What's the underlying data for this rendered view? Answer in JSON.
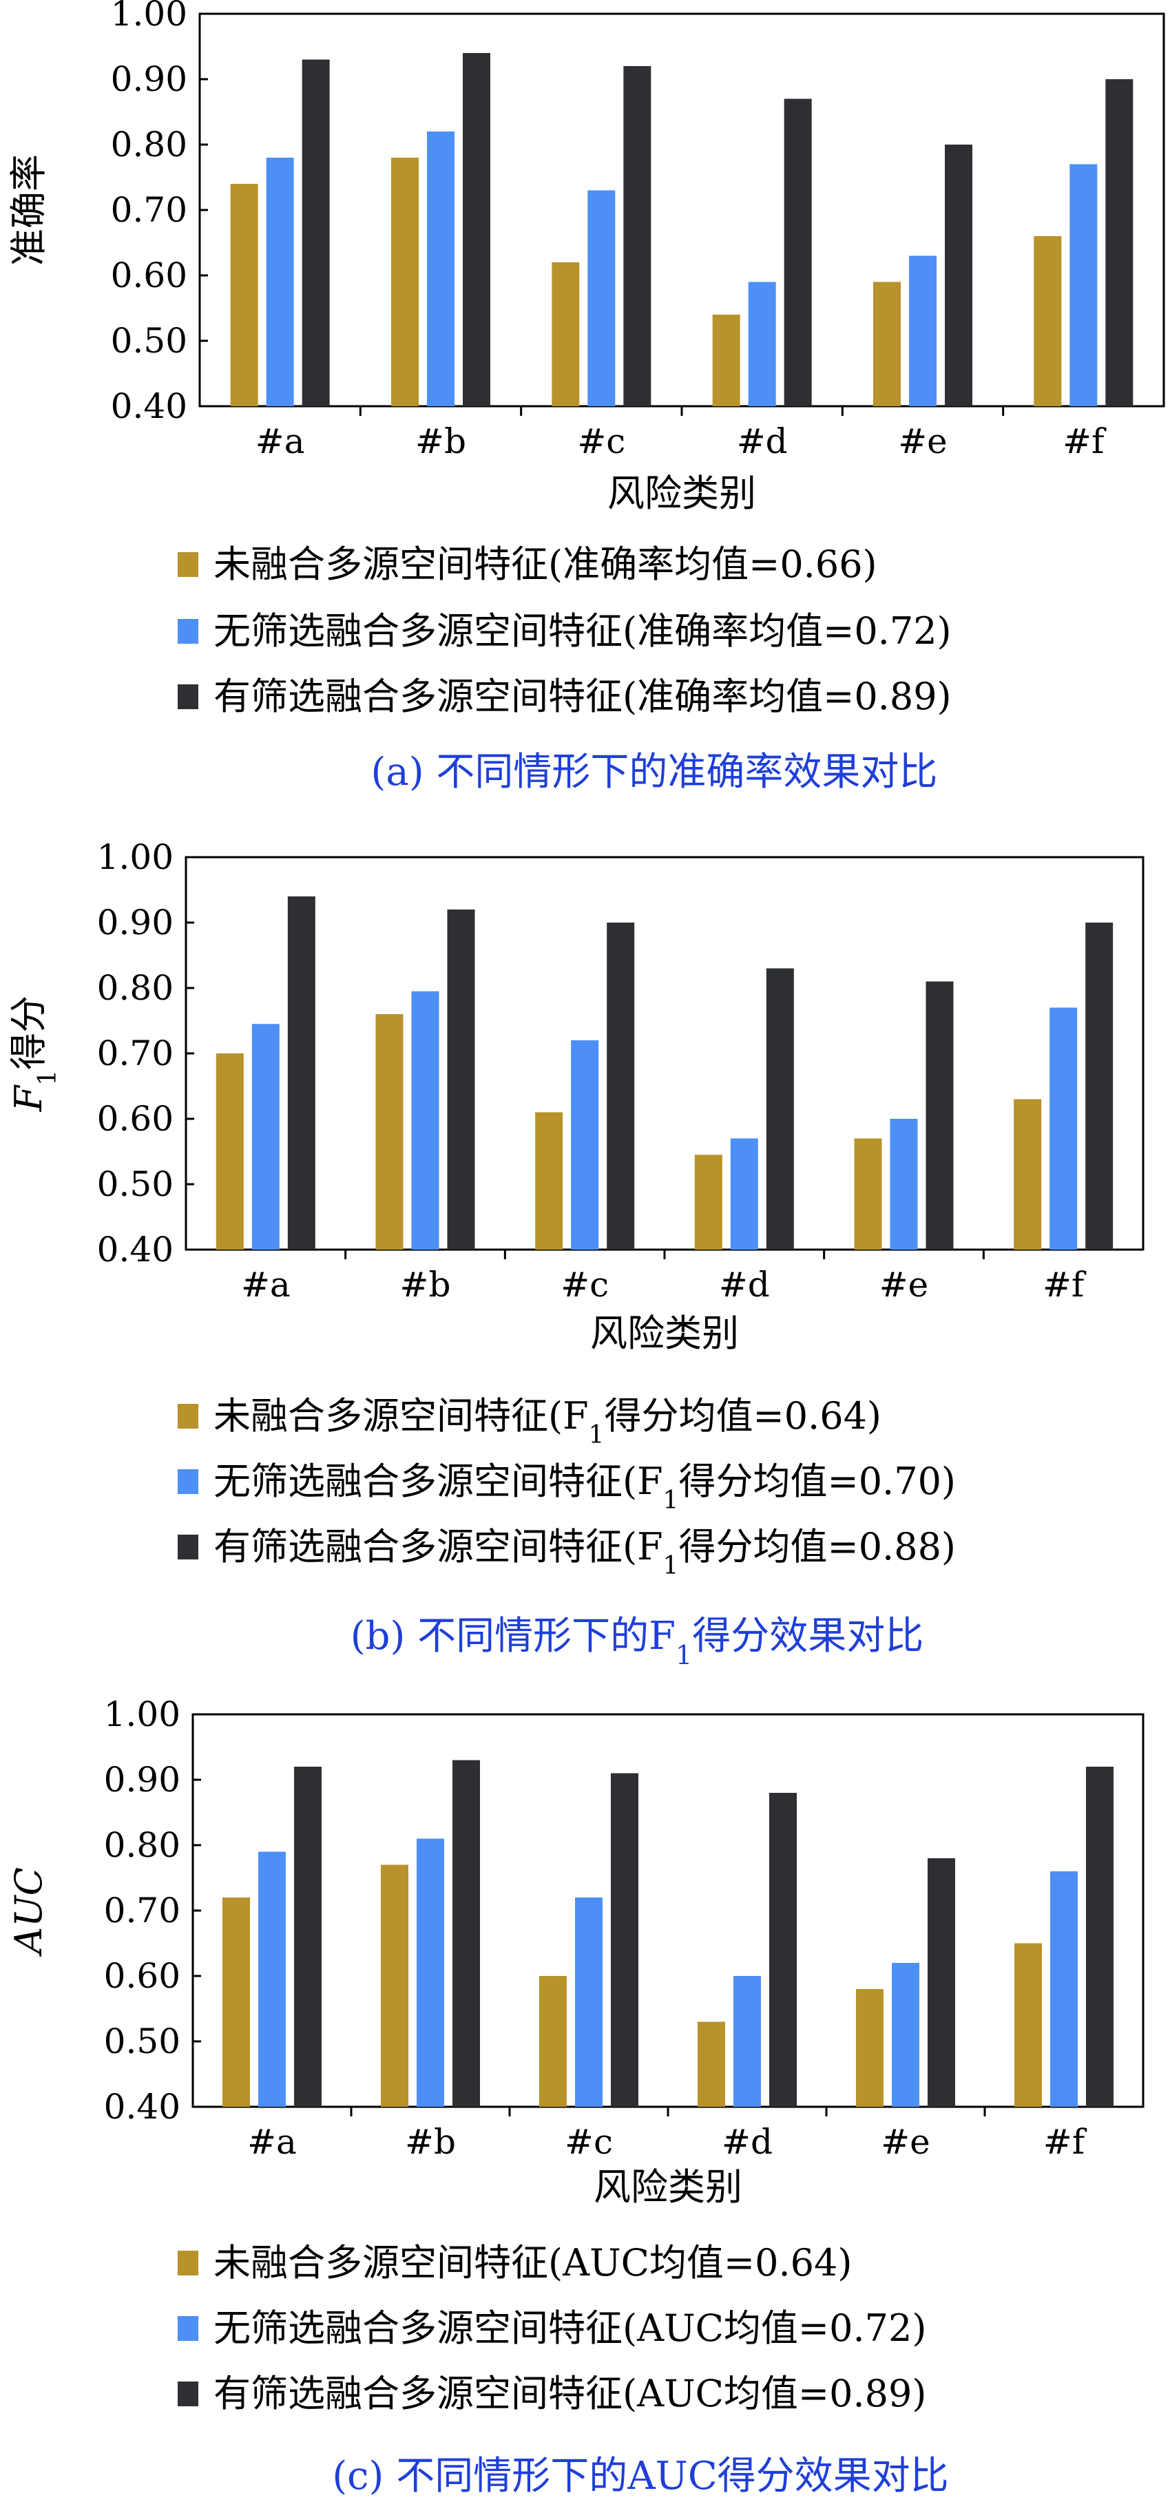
{
  "colors": {
    "series_1": "#b8922a",
    "series_2": "#4d8ff5",
    "series_3": "#2d2f33",
    "caption": "#1f3fd8"
  },
  "chart_data": [
    {
      "type": "bar",
      "categories": [
        "#a",
        "#b",
        "#c",
        "#d",
        "#e",
        "#f"
      ],
      "ylabel": "准确率",
      "ylabel_sub": "",
      "ylabel_tail": "",
      "xlabel": "风险类别",
      "ylim": [
        0.4,
        1.0
      ],
      "yticks": [
        "0.40",
        "0.50",
        "0.60",
        "0.70",
        "0.80",
        "0.90",
        "1.00"
      ],
      "grid": false,
      "legend_position": "bottom",
      "series": [
        {
          "legend_pre": "未融合多源空间特征(",
          "legend_sub": "",
          "legend_post": "准确率均值=0.66)",
          "values": [
            0.74,
            0.78,
            0.62,
            0.54,
            0.59,
            0.66
          ]
        },
        {
          "legend_pre": "无筛选融合多源空间特征(",
          "legend_sub": "",
          "legend_post": "准确率均值=0.72)",
          "values": [
            0.78,
            0.82,
            0.73,
            0.59,
            0.63,
            0.77
          ]
        },
        {
          "legend_pre": "有筛选融合多源空间特征(",
          "legend_sub": "",
          "legend_post": "准确率均值=0.89)",
          "values": [
            0.93,
            0.94,
            0.92,
            0.87,
            0.8,
            0.9
          ]
        }
      ],
      "caption_pre": "(a) 不同情形下的准确率效果对比",
      "caption_sub": "",
      "caption_post": ""
    },
    {
      "type": "bar",
      "categories": [
        "#a",
        "#b",
        "#c",
        "#d",
        "#e",
        "#f"
      ],
      "ylabel": "F",
      "ylabel_sub": "1",
      "ylabel_tail": "得分",
      "xlabel": "风险类别",
      "ylim": [
        0.4,
        1.0
      ],
      "yticks": [
        "0.40",
        "0.50",
        "0.60",
        "0.70",
        "0.80",
        "0.90",
        "1.00"
      ],
      "grid": false,
      "legend_position": "bottom",
      "series": [
        {
          "legend_pre": "未融合多源空间特征(F",
          "legend_sub": "1",
          "legend_post": "得分均值=0.64)",
          "values": [
            0.7,
            0.76,
            0.61,
            0.545,
            0.57,
            0.63
          ]
        },
        {
          "legend_pre": "无筛选融合多源空间特征(F",
          "legend_sub": "1",
          "legend_post": "得分均值=0.70)",
          "values": [
            0.745,
            0.795,
            0.72,
            0.57,
            0.6,
            0.77
          ]
        },
        {
          "legend_pre": "有筛选融合多源空间特征(F",
          "legend_sub": "1",
          "legend_post": "得分均值=0.88)",
          "values": [
            0.94,
            0.92,
            0.9,
            0.83,
            0.81,
            0.9
          ]
        }
      ],
      "caption_pre": "(b) 不同情形下的F",
      "caption_sub": "1",
      "caption_post": "得分效果对比"
    },
    {
      "type": "bar",
      "categories": [
        "#a",
        "#b",
        "#c",
        "#d",
        "#e",
        "#f"
      ],
      "ylabel": "AUC",
      "ylabel_sub": "",
      "ylabel_tail": "",
      "xlabel": "风险类别",
      "ylim": [
        0.4,
        1.0
      ],
      "yticks": [
        "0.40",
        "0.50",
        "0.60",
        "0.70",
        "0.80",
        "0.90",
        "1.00"
      ],
      "grid": false,
      "legend_position": "bottom",
      "series": [
        {
          "legend_pre": "未融合多源空间特征(AUC",
          "legend_sub": "",
          "legend_post": "均值=0.64)",
          "values": [
            0.72,
            0.77,
            0.6,
            0.53,
            0.58,
            0.65
          ]
        },
        {
          "legend_pre": "无筛选融合多源空间特征(AUC",
          "legend_sub": "",
          "legend_post": "均值=0.72)",
          "values": [
            0.79,
            0.81,
            0.72,
            0.6,
            0.62,
            0.76
          ]
        },
        {
          "legend_pre": "有筛选融合多源空间特征(AUC",
          "legend_sub": "",
          "legend_post": "均值=0.89)",
          "values": [
            0.92,
            0.93,
            0.91,
            0.88,
            0.78,
            0.92
          ]
        }
      ],
      "caption_pre": "(c) 不同情形下的AUC得分效果对比",
      "caption_sub": "",
      "caption_post": ""
    }
  ]
}
